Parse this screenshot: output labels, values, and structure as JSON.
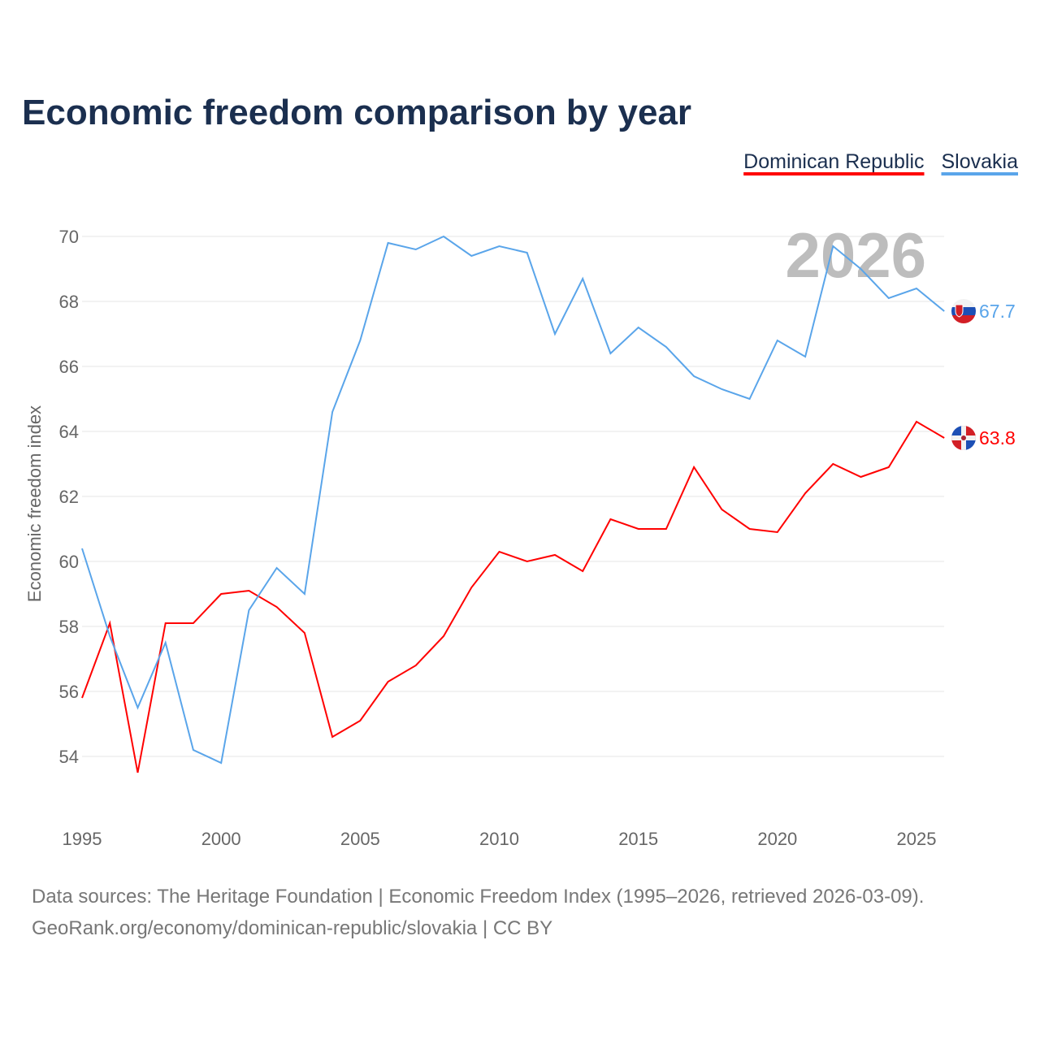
{
  "chart_data": {
    "type": "line",
    "title": "Economic freedom comparison by year",
    "xlabel": "",
    "ylabel": "Economic freedom index",
    "xlim": [
      1995,
      2026
    ],
    "ylim": [
      52.5,
      71
    ],
    "x_ticks": [
      1995,
      2000,
      2005,
      2010,
      2015,
      2020,
      2025
    ],
    "y_ticks": [
      54,
      56,
      58,
      60,
      62,
      64,
      66,
      68,
      70
    ],
    "grid": true,
    "legend_position": "top-right",
    "watermark_year": "2026",
    "x": [
      1995,
      1996,
      1997,
      1998,
      1999,
      2000,
      2001,
      2002,
      2003,
      2004,
      2005,
      2006,
      2007,
      2008,
      2009,
      2010,
      2011,
      2012,
      2013,
      2014,
      2015,
      2016,
      2017,
      2018,
      2019,
      2020,
      2021,
      2022,
      2023,
      2024,
      2025,
      2026
    ],
    "series": [
      {
        "name": "Dominican Republic",
        "color": "#ff0000",
        "flag": "dominican-republic-flag",
        "end_label": "63.8",
        "values": [
          55.8,
          58.1,
          53.5,
          58.1,
          58.1,
          59.0,
          59.1,
          58.6,
          57.8,
          54.6,
          55.1,
          56.3,
          56.8,
          57.7,
          59.2,
          60.3,
          60.0,
          60.2,
          59.7,
          61.3,
          61.0,
          61.0,
          62.9,
          61.6,
          61.0,
          60.9,
          62.1,
          63.0,
          62.6,
          62.9,
          64.3,
          63.8
        ]
      },
      {
        "name": "Slovakia",
        "color": "#5aa5ea",
        "flag": "slovakia-flag",
        "end_label": "67.7",
        "values": [
          60.4,
          57.7,
          55.5,
          57.5,
          54.2,
          53.8,
          58.5,
          59.8,
          59.0,
          64.6,
          66.8,
          69.8,
          69.6,
          70.0,
          69.4,
          69.7,
          69.5,
          67.0,
          68.7,
          66.4,
          67.2,
          66.6,
          65.7,
          65.3,
          65.0,
          66.8,
          66.3,
          69.7,
          69.0,
          68.1,
          68.4,
          67.7
        ]
      }
    ]
  },
  "footer": {
    "line1": "Data sources: The Heritage Foundation | Economic Freedom Index (1995–2026, retrieved 2026-03-09).",
    "line2": "GeoRank.org/economy/dominican-republic/slovakia | CC BY"
  }
}
